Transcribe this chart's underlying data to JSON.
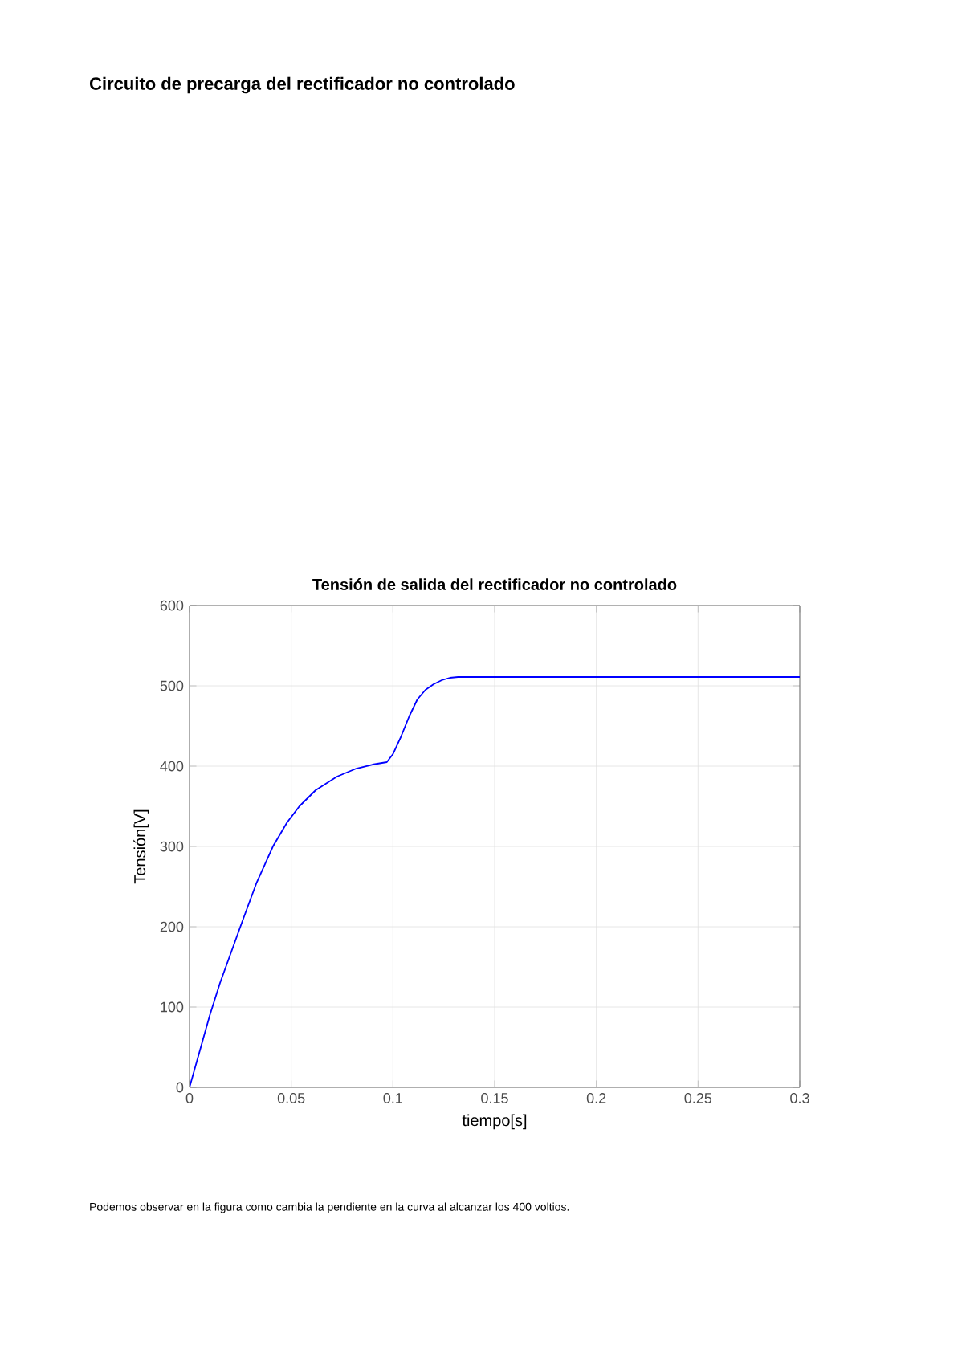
{
  "chart_data": {
    "type": "line",
    "title": "Tensión de salida del rectificador no controlado",
    "xlabel": "tiempo[s]",
    "ylabel": "Tensión[V]",
    "annotations": [
      "Circuito de precarga del rectificador no controlado",
      "Podemos observar en la figura como cambia la pendiente en la curva al alcanzar los 400 voltios."
    ],
    "x": [
      0,
      0.005,
      0.01,
      0.015,
      0.02,
      0.026,
      0.033,
      0.041,
      0.048,
      0.054,
      0.062,
      0.0725,
      0.082,
      0.09,
      0.097,
      0.1,
      0.104,
      0.108,
      0.112,
      0.116,
      0.12,
      0.124,
      0.128,
      0.132,
      0.136,
      0.15,
      0.2,
      0.25,
      0.3
    ],
    "series": [
      {
        "color": "#0000ff",
        "values": [
          0,
          45,
          90,
          130,
          165,
          207,
          255,
          300,
          330,
          350,
          370,
          387,
          397,
          402,
          405,
          415,
          437,
          462,
          483,
          495,
          502,
          507,
          510,
          511,
          511,
          511,
          511,
          511,
          511
        ]
      }
    ],
    "xlim": [
      0,
      0.3
    ],
    "ylim": [
      0,
      600
    ],
    "xticks": [
      0,
      0.05,
      0.1,
      0.15,
      0.2,
      0.25,
      0.3
    ],
    "yticks": [
      0,
      100,
      200,
      300,
      400,
      500,
      600
    ],
    "grid": true,
    "legend": false,
    "marker": "none",
    "line_style": "solid"
  }
}
